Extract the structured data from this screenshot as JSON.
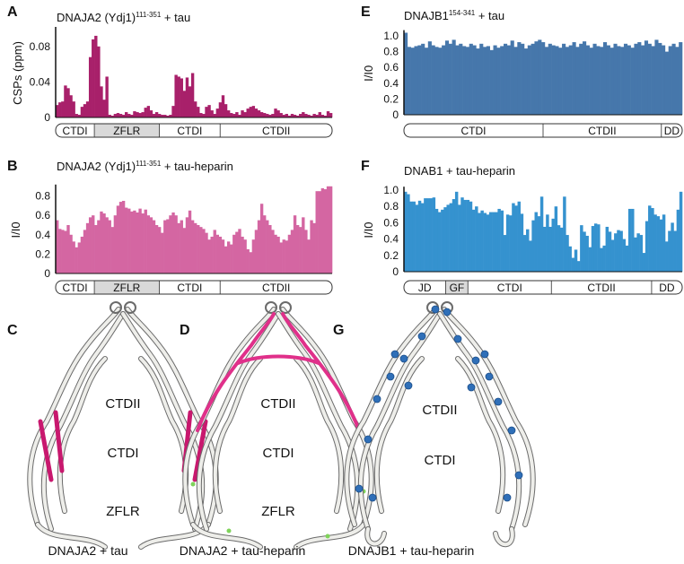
{
  "chart_data": [
    {
      "panel": "A",
      "type": "bar",
      "title": {
        "main": "DNAJA2 (Ydj1)",
        "sup": "111-351",
        "tail": " + tau"
      },
      "ylabel": "CSPs (ppm)",
      "ylim": [
        0,
        0.1
      ],
      "yticks": [
        {
          "v": 0,
          "label": "0"
        },
        {
          "v": 0.04,
          "label": "0.04"
        },
        {
          "v": 0.08,
          "label": "0.08"
        }
      ],
      "color": "#a8206a",
      "values": [
        0.014,
        0.017,
        0.018,
        0.036,
        0.033,
        0.025,
        0.018,
        0.004,
        0.003,
        0.012,
        0.015,
        0.018,
        0.068,
        0.088,
        0.092,
        0.08,
        0.035,
        0.02,
        0.046,
        0.003,
        0.002,
        0.004,
        0.005,
        0.004,
        0.003,
        0.006,
        0.004,
        0.003,
        0.007,
        0.006,
        0.005,
        0.006,
        0.011,
        0.013,
        0.008,
        0.004,
        0.006,
        0.004,
        0.003,
        0.003,
        0.002,
        0.003,
        0.013,
        0.048,
        0.046,
        0.044,
        0.03,
        0.045,
        0.035,
        0.05,
        0.018,
        0.012,
        0.005,
        0.004,
        0.012,
        0.014,
        0.008,
        0.004,
        0.01,
        0.017,
        0.025,
        0.015,
        0.008,
        0.005,
        0.004,
        0.006,
        0.003,
        0.008,
        0.006,
        0.01,
        0.012,
        0.013,
        0.01,
        0.008,
        0.006,
        0.005,
        0.004,
        0.003,
        0.004,
        0.01,
        0.008,
        0.005,
        0.003,
        0.004,
        0.002,
        0.004,
        0.003,
        0.002,
        0.004,
        0.006,
        0.004,
        0.003,
        0.002,
        0.004,
        0.003,
        0.006,
        0.003,
        0.002,
        0.007,
        0.005
      ],
      "domains": [
        {
          "label": "CTDI",
          "share": 14,
          "shaded": false
        },
        {
          "label": "ZFLR",
          "share": 23.5,
          "shaded": true
        },
        {
          "label": "CTDI",
          "share": 22,
          "shaded": false
        },
        {
          "label": "CTDII",
          "share": 40.5,
          "shaded": false
        }
      ]
    },
    {
      "panel": "B",
      "type": "bar",
      "title": {
        "main": "DNAJA2 (Ydj1)",
        "sup": "111-351",
        "tail": " + tau-heparin"
      },
      "ylabel": "I/I0",
      "ylim": [
        0,
        0.9
      ],
      "yticks": [
        {
          "v": 0,
          "label": "0"
        },
        {
          "v": 0.2,
          "label": "0.2"
        },
        {
          "v": 0.4,
          "label": "0.4"
        },
        {
          "v": 0.6,
          "label": "0.6"
        },
        {
          "v": 0.8,
          "label": "0.8"
        }
      ],
      "color": "#d466a2",
      "values": [
        0.55,
        0.46,
        0.45,
        0.44,
        0.5,
        0.4,
        0.33,
        0.27,
        0.32,
        0.38,
        0.45,
        0.52,
        0.58,
        0.6,
        0.5,
        0.55,
        0.64,
        0.62,
        0.58,
        0.55,
        0.48,
        0.6,
        0.7,
        0.74,
        0.75,
        0.68,
        0.67,
        0.64,
        0.65,
        0.63,
        0.67,
        0.62,
        0.66,
        0.6,
        0.58,
        0.55,
        0.5,
        0.48,
        0.42,
        0.55,
        0.56,
        0.6,
        0.63,
        0.6,
        0.52,
        0.55,
        0.47,
        0.58,
        0.65,
        0.55,
        0.52,
        0.5,
        0.48,
        0.46,
        0.42,
        0.35,
        0.38,
        0.45,
        0.4,
        0.38,
        0.35,
        0.28,
        0.33,
        0.3,
        0.4,
        0.43,
        0.46,
        0.38,
        0.35,
        0.25,
        0.22,
        0.35,
        0.45,
        0.55,
        0.72,
        0.6,
        0.55,
        0.5,
        0.45,
        0.4,
        0.38,
        0.32,
        0.35,
        0.34,
        0.4,
        0.45,
        0.6,
        0.5,
        0.48,
        0.58,
        0.45,
        0.35,
        0.55,
        0.52,
        0.85,
        0.85,
        0.88,
        0.87,
        0.9,
        0.9
      ],
      "domains": [
        {
          "label": "CTDI",
          "share": 14,
          "shaded": false
        },
        {
          "label": "ZFLR",
          "share": 23.5,
          "shaded": true
        },
        {
          "label": "CTDI",
          "share": 22,
          "shaded": false
        },
        {
          "label": "CTDII",
          "share": 40.5,
          "shaded": false
        }
      ]
    },
    {
      "panel": "E",
      "type": "bar",
      "title": {
        "main": "DNAJB1",
        "sup": "154-341",
        "tail": " + tau"
      },
      "ylabel": "I/I0",
      "ylim": [
        0,
        1.05
      ],
      "yticks": [
        {
          "v": 0,
          "label": "0"
        },
        {
          "v": 0.2,
          "label": "0.2"
        },
        {
          "v": 0.4,
          "label": "0.4"
        },
        {
          "v": 0.6,
          "label": "0.6"
        },
        {
          "v": 0.8,
          "label": "0.8"
        },
        {
          "v": 1.0,
          "label": "1.0"
        }
      ],
      "color": "#4677ab",
      "values": [
        1.04,
        0.86,
        0.85,
        0.87,
        0.88,
        0.9,
        0.85,
        0.93,
        0.88,
        0.86,
        0.85,
        0.88,
        0.94,
        0.9,
        0.95,
        0.88,
        0.9,
        0.87,
        0.86,
        0.9,
        0.88,
        0.84,
        0.9,
        0.86,
        0.87,
        0.82,
        0.88,
        0.85,
        0.87,
        0.9,
        0.88,
        0.94,
        0.86,
        0.92,
        0.9,
        0.84,
        0.88,
        0.9,
        0.93,
        0.95,
        0.92,
        0.86,
        0.9,
        0.88,
        0.87,
        0.85,
        0.9,
        0.86,
        0.88,
        0.92,
        0.86,
        0.9,
        0.93,
        0.88,
        0.85,
        0.9,
        0.87,
        0.86,
        0.92,
        0.88,
        0.85,
        0.9,
        0.87,
        0.86,
        0.9,
        0.88,
        0.85,
        0.9,
        0.92,
        0.88,
        0.94,
        0.9,
        0.87,
        0.95,
        0.91,
        0.88,
        0.8,
        0.87,
        0.9,
        0.86,
        0.92
      ],
      "domains": [
        {
          "label": "CTDI",
          "share": 50,
          "shaded": false
        },
        {
          "label": "CTDII",
          "share": 42.5,
          "shaded": false
        },
        {
          "label": "DD",
          "share": 7.5,
          "shaded": false
        }
      ]
    },
    {
      "panel": "F",
      "type": "bar",
      "title": {
        "main": "DNAB1 + tau-heparin",
        "sup": "",
        "tail": ""
      },
      "ylabel": "I/I0",
      "ylim": [
        0,
        1.02
      ],
      "yticks": [
        {
          "v": 0,
          "label": "0"
        },
        {
          "v": 0.2,
          "label": "0.2"
        },
        {
          "v": 0.4,
          "label": "0.4"
        },
        {
          "v": 0.6,
          "label": "0.6"
        },
        {
          "v": 0.8,
          "label": "0.8"
        },
        {
          "v": 1.0,
          "label": "1.0"
        }
      ],
      "color": "#3592cf",
      "values": [
        0.98,
        0.95,
        0.86,
        0.86,
        0.82,
        0.87,
        0.84,
        0.9,
        0.9,
        0.9,
        0.91,
        0.77,
        0.73,
        0.76,
        0.79,
        0.82,
        0.84,
        0.89,
        0.98,
        0.82,
        0.91,
        0.88,
        0.88,
        0.86,
        0.76,
        0.8,
        0.72,
        0.75,
        0.72,
        0.7,
        0.73,
        0.73,
        0.73,
        0.77,
        0.75,
        0.45,
        0.7,
        0.69,
        0.84,
        0.81,
        0.86,
        0.71,
        0.45,
        0.52,
        0.38,
        0.63,
        0.73,
        0.68,
        0.92,
        0.55,
        0.7,
        0.55,
        0.65,
        0.8,
        0.57,
        0.54,
        0.92,
        0.45,
        0.31,
        0.17,
        0.27,
        0.13,
        0.57,
        0.49,
        0.44,
        0.3,
        0.56,
        0.59,
        0.58,
        0.29,
        0.32,
        0.55,
        0.49,
        0.39,
        0.47,
        0.51,
        0.5,
        0.4,
        0.32,
        0.77,
        0.77,
        0.42,
        0.47,
        0.45,
        0.23,
        0.62,
        0.81,
        0.78,
        0.7,
        0.68,
        0.64,
        0.7,
        0.37,
        0.5,
        0.6,
        0.5,
        0.76,
        0.98
      ],
      "domains": [
        {
          "label": "JD",
          "share": 15,
          "shaded": false
        },
        {
          "label": "GF",
          "share": 8,
          "shaded": true
        },
        {
          "label": "CTDI",
          "share": 30,
          "shaded": false
        },
        {
          "label": "CTDII",
          "share": 36,
          "shaded": false
        },
        {
          "label": "DD",
          "share": 11,
          "shaded": false
        }
      ]
    }
  ],
  "structures": [
    {
      "panel": "C",
      "caption": "DNAJA2 + tau",
      "labels": [
        "CTDII",
        "CTDI",
        "ZFLR"
      ],
      "highlight_color": "#c8186e",
      "highlight": "sides"
    },
    {
      "panel": "D",
      "caption": "DNAJA2 + tau-heparin",
      "labels": [
        "CTDII",
        "CTDI",
        "ZFLR"
      ],
      "highlight_color": "#e0308a",
      "highlight": "top"
    },
    {
      "panel": "G",
      "caption": "DNAJB1 + tau-heparin",
      "labels": [
        "CTDII",
        "CTDI"
      ],
      "highlight_color": "#2f6fb8",
      "highlight": "dots"
    }
  ]
}
